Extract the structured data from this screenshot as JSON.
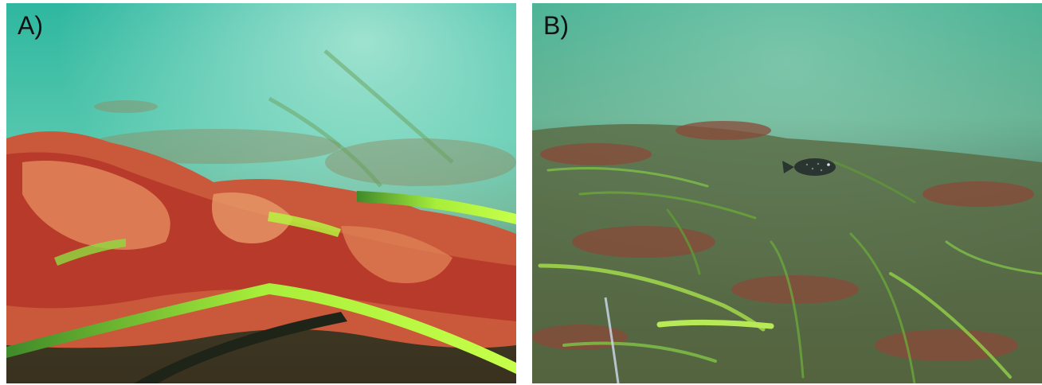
{
  "figure": {
    "panels": [
      {
        "label": "A)"
      },
      {
        "label": "B)"
      }
    ]
  }
}
